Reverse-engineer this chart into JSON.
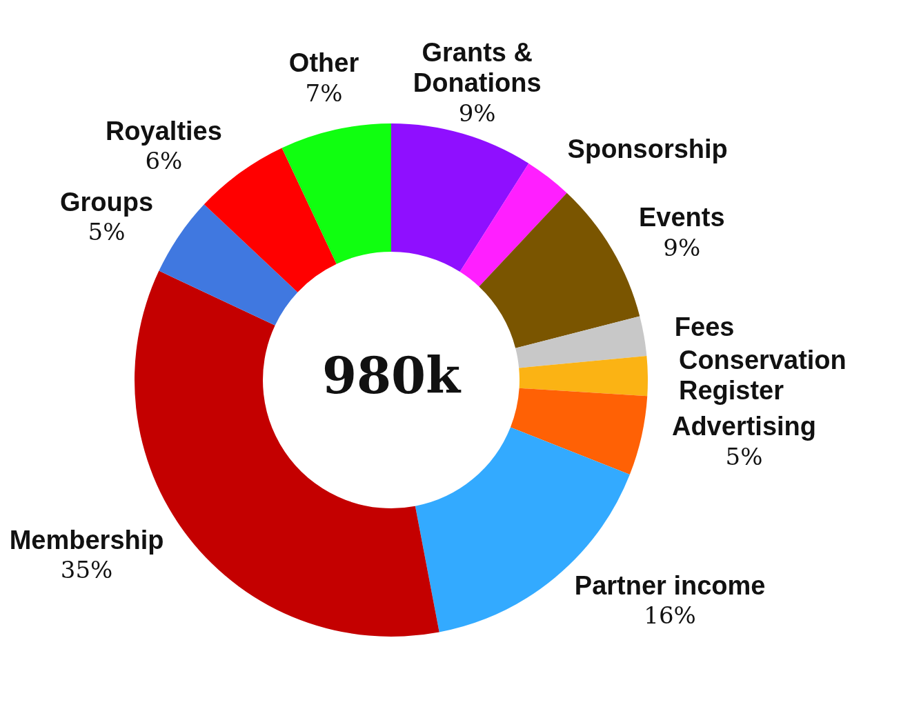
{
  "chart_data": {
    "type": "donut",
    "categories": [
      "Grants & Donations",
      "Sponsorship",
      "Events",
      "Fees",
      "Conservation Register",
      "Advertising",
      "Partner income",
      "Membership",
      "Groups",
      "Royalties",
      "Other"
    ],
    "values": [
      9,
      3,
      9,
      2.5,
      2.5,
      5,
      16,
      35,
      5,
      6,
      7
    ],
    "colors": [
      "#8f0fff",
      "#ff1fff",
      "#7a5500",
      "#c8c8c8",
      "#fbb314",
      "#ff6105",
      "#33aaff",
      "#c40000",
      "#4078e0",
      "#ff0000",
      "#10ff10"
    ],
    "value_labels": [
      "9%",
      null,
      "9%",
      null,
      null,
      "5%",
      "16%",
      "35%",
      "5%",
      "6%",
      "7%"
    ],
    "annotations": [
      "980k"
    ]
  }
}
